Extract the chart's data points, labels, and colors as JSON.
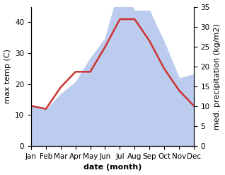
{
  "months": [
    "Jan",
    "Feb",
    "Mar",
    "Apr",
    "May",
    "Jun",
    "Jul",
    "Aug",
    "Sep",
    "Oct",
    "Nov",
    "Dec"
  ],
  "temp": [
    13,
    12,
    19,
    24,
    24,
    32,
    41,
    41,
    34,
    25,
    18,
    13
  ],
  "precip": [
    10,
    9,
    13,
    16,
    22,
    27,
    40,
    34,
    34,
    26,
    17,
    18
  ],
  "temp_color": "#cc3333",
  "precip_color": "#bbccee",
  "ylabel_left": "max temp (C)",
  "ylabel_right": "med. precipitation (kg/m2)",
  "xlabel": "date (month)",
  "ylim_left": [
    0,
    45
  ],
  "ylim_right": [
    0,
    35
  ],
  "yticks_left": [
    0,
    10,
    20,
    30,
    40
  ],
  "yticks_right": [
    0,
    5,
    10,
    15,
    20,
    25,
    30,
    35
  ],
  "label_fontsize": 8,
  "tick_fontsize": 7.5,
  "xlabel_fontsize": 8,
  "background_color": "#ffffff"
}
